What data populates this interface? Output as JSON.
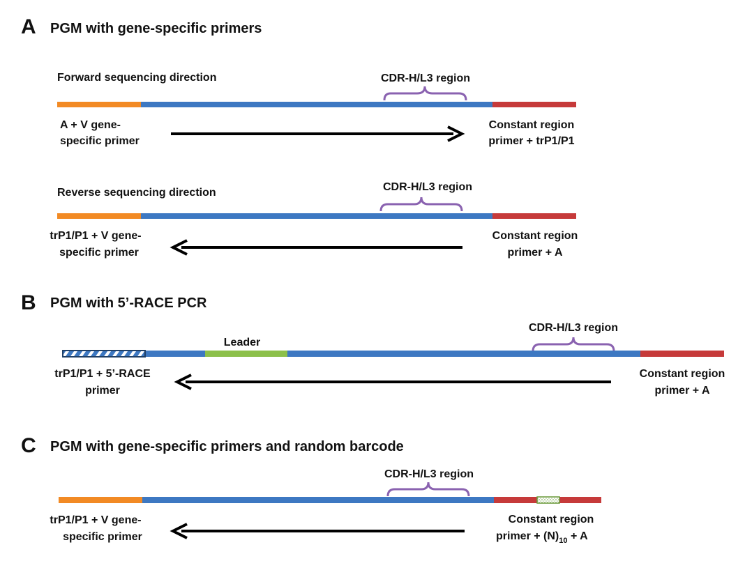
{
  "panels": {
    "a": {
      "letter": "A",
      "title": "PGM with gene-specific primers",
      "forward": {
        "direction_label": "Forward sequencing direction",
        "cdr_label": "CDR-H/L3 region",
        "left_label_1": "A  + V gene-",
        "left_label_2": "specific primer",
        "right_label_1": "Constant region",
        "right_label_2": "primer + trP1/P1"
      },
      "reverse": {
        "direction_label": "Reverse sequencing direction",
        "cdr_label": "CDR-H/L3 region",
        "left_label_1": "trP1/P1 + V gene-",
        "left_label_2": "specific primer",
        "right_label_1": "Constant region",
        "right_label_2": "primer + A"
      }
    },
    "b": {
      "letter": "B",
      "title": "PGM with 5’-RACE PCR",
      "leader_label": "Leader",
      "cdr_label": "CDR-H/L3 region",
      "left_label_1": "trP1/P1 + 5’-RACE",
      "left_label_2": "primer",
      "right_label_1": "Constant region",
      "right_label_2": "primer + A"
    },
    "c": {
      "letter": "C",
      "title": "PGM with gene-specific primers and random barcode",
      "cdr_label": "CDR-H/L3 region",
      "left_label_1": "trP1/P1 + V gene-",
      "left_label_2": "specific primer",
      "right_label_1": "Constant region",
      "right_label_2_prefix": "primer + (N)",
      "right_label_2_sub": "10",
      "right_label_2_suffix": " +  A"
    }
  },
  "colors": {
    "primer_orange": "#f28a24",
    "variable_blue": "#3d78c2",
    "constant_red": "#c63a3a",
    "leader_green": "#8cc04a",
    "bracket_purple": "#8a62b0",
    "race_box_navy": "#1f3f66",
    "arrow_black": "#000000"
  }
}
